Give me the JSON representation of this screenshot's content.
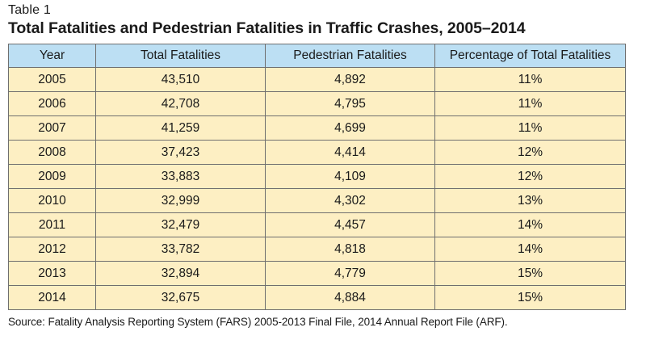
{
  "label": "Table 1",
  "title": "Total Fatalities and Pedestrian Fatalities in Traffic Crashes, 2005–2014",
  "columns": [
    "Year",
    "Total Fatalities",
    "Pedestrian Fatalities",
    "Percentage of Total Fatalities"
  ],
  "rows": [
    [
      "2005",
      "43,510",
      "4,892",
      "11%"
    ],
    [
      "2006",
      "42,708",
      "4,795",
      "11%"
    ],
    [
      "2007",
      "41,259",
      "4,699",
      "11%"
    ],
    [
      "2008",
      "37,423",
      "4,414",
      "12%"
    ],
    [
      "2009",
      "33,883",
      "4,109",
      "12%"
    ],
    [
      "2010",
      "32,999",
      "4,302",
      "13%"
    ],
    [
      "2011",
      "32,479",
      "4,457",
      "14%"
    ],
    [
      "2012",
      "33,782",
      "4,818",
      "14%"
    ],
    [
      "2013",
      "32,894",
      "4,779",
      "15%"
    ],
    [
      "2014",
      "32,675",
      "4,884",
      "15%"
    ]
  ],
  "source": "Source: Fatality Analysis Reporting System (FARS) 2005-2013 Final File, 2014 Annual Report File (ARF).",
  "colors": {
    "header_bg": "#bcdff3",
    "row_bg": "#fdefc3",
    "border": "#6f6f6f"
  }
}
